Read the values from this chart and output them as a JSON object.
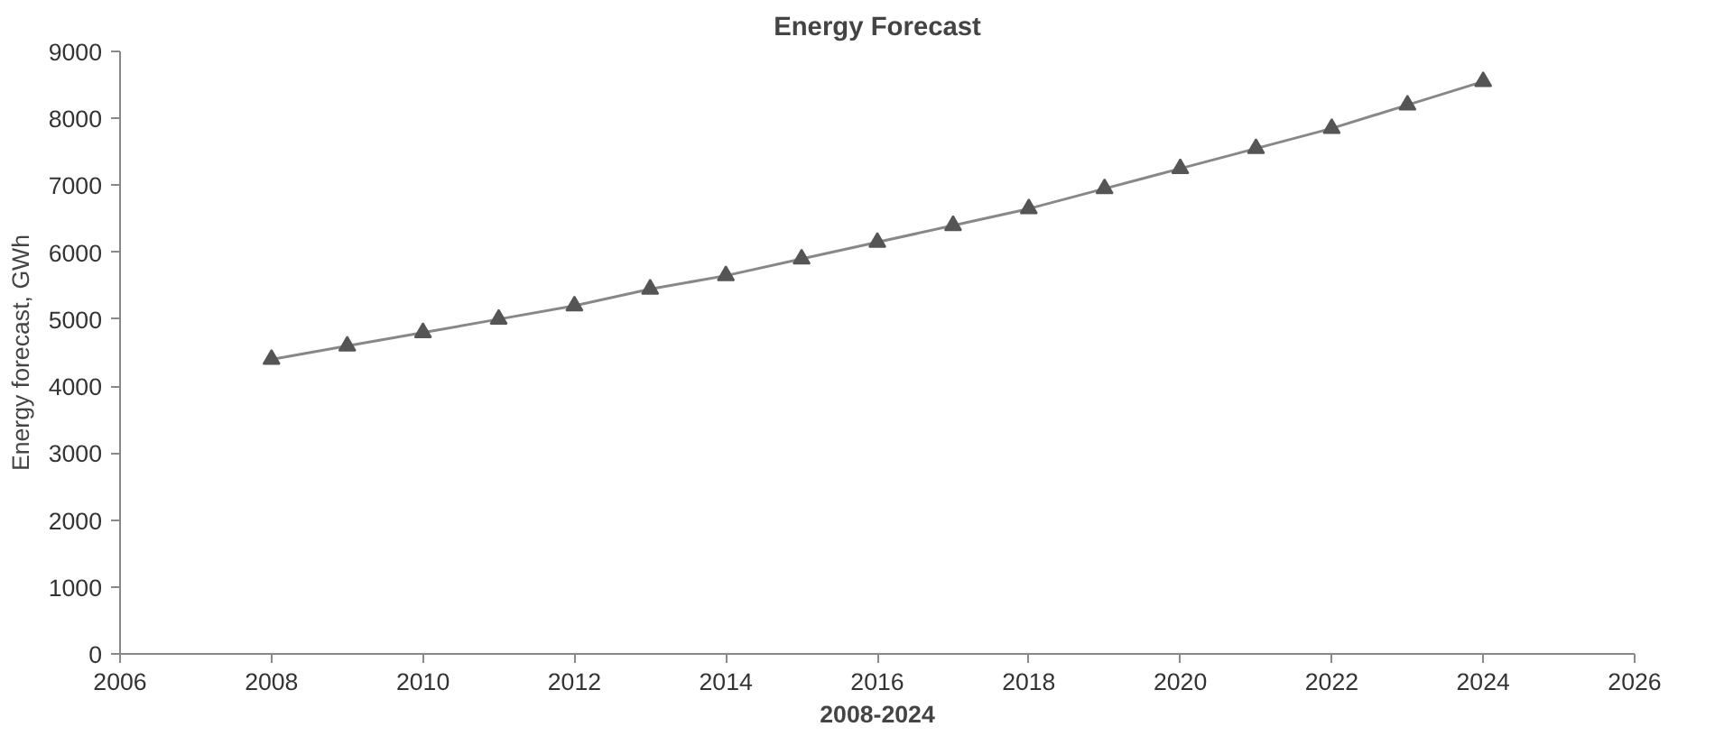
{
  "chart_data": {
    "type": "line",
    "title": "Energy Forecast",
    "xlabel": "2008-2024",
    "ylabel": "Energy forecast, GWh",
    "x": [
      2008,
      2009,
      2010,
      2011,
      2012,
      2013,
      2014,
      2015,
      2016,
      2017,
      2018,
      2019,
      2020,
      2021,
      2022,
      2023,
      2024
    ],
    "series": [
      {
        "color": "#555555",
        "values": [
          4400,
          4600,
          4800,
          5000,
          5200,
          5450,
          5650,
          5900,
          6150,
          6400,
          6650,
          6950,
          7250,
          7550,
          7850,
          8200,
          8550
        ]
      }
    ],
    "xlim": [
      2006,
      2026
    ],
    "xticks": [
      2006,
      2008,
      2010,
      2012,
      2014,
      2016,
      2018,
      2020,
      2022,
      2024,
      2026
    ],
    "ylim": [
      0,
      9000
    ],
    "yticks": [
      0,
      1000,
      2000,
      3000,
      4000,
      5000,
      6000,
      7000,
      8000,
      9000
    ],
    "grid": false,
    "marker": "triangle",
    "line_style": "solid"
  }
}
